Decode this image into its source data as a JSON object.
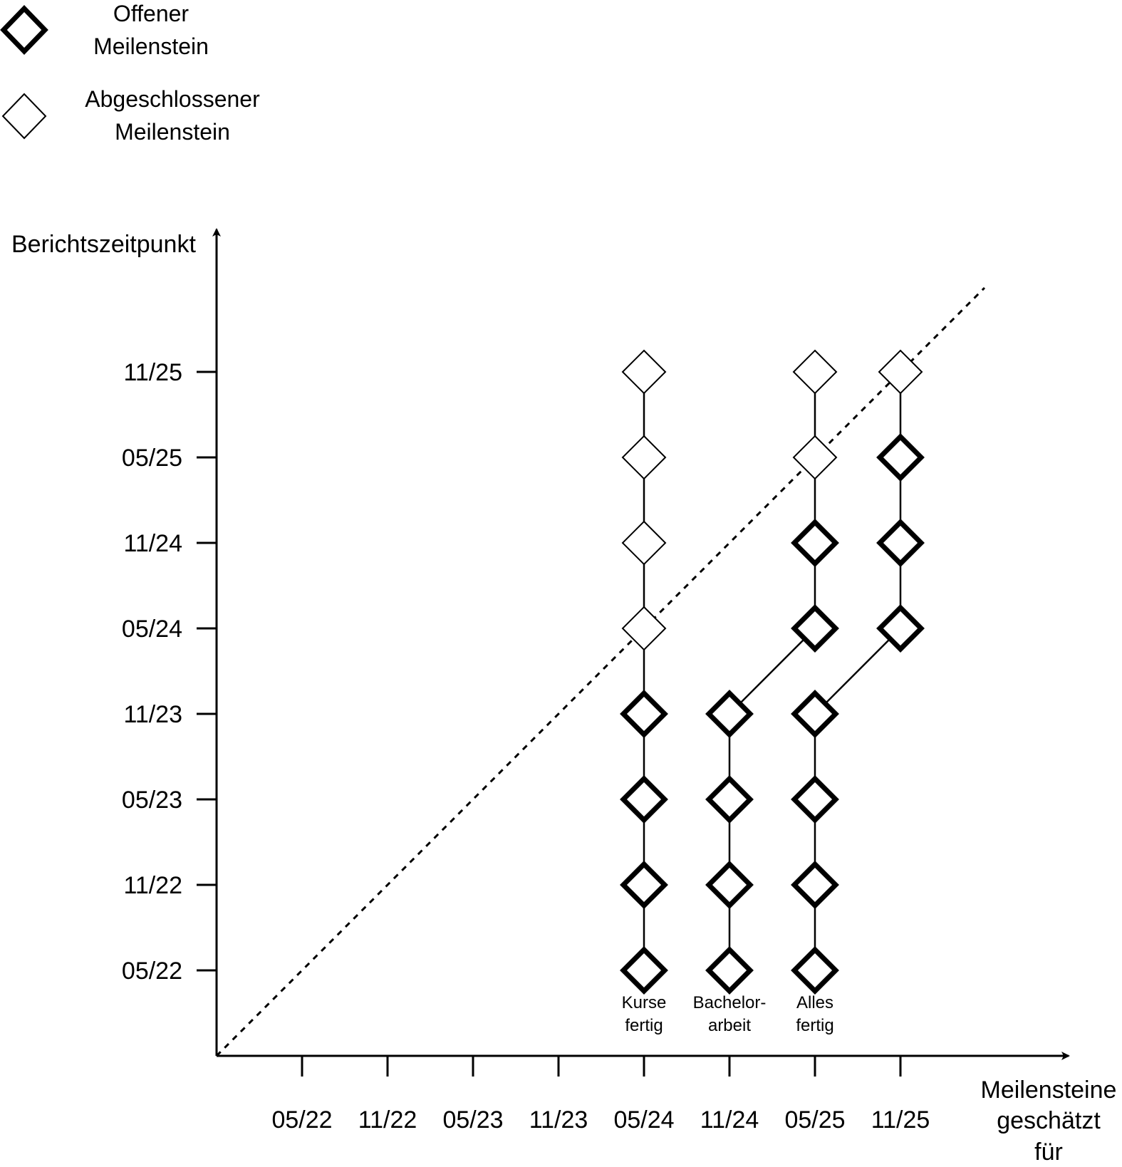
{
  "legend": {
    "open_line1": "Offener",
    "open_line2": "Meilenstein",
    "done_line1": "Abgeschlossener",
    "done_line2": "Meilenstein"
  },
  "axes": {
    "y_label": "Berichtszeitpunkt",
    "x_label_line1": "Meilensteine",
    "x_label_line2": "geschätzt",
    "x_label_line3": "für"
  },
  "chart_data": {
    "type": "milestone-trend-analysis",
    "x_ticks": [
      "05/22",
      "11/22",
      "05/23",
      "11/23",
      "05/24",
      "11/24",
      "05/25",
      "11/25"
    ],
    "y_ticks": [
      "05/22",
      "11/22",
      "05/23",
      "11/23",
      "05/24",
      "11/24",
      "05/25",
      "11/25"
    ],
    "diagonal": "dashed",
    "milestones": [
      {
        "label_line1": "Kurse",
        "label_line2": "fertig",
        "points": [
          {
            "report": "05/22",
            "estimate": "05/24",
            "status": "open"
          },
          {
            "report": "11/22",
            "estimate": "05/24",
            "status": "open"
          },
          {
            "report": "05/23",
            "estimate": "05/24",
            "status": "open"
          },
          {
            "report": "11/23",
            "estimate": "05/24",
            "status": "open"
          },
          {
            "report": "05/24",
            "estimate": "05/24",
            "status": "done"
          },
          {
            "report": "11/24",
            "estimate": "05/24",
            "status": "done"
          },
          {
            "report": "05/25",
            "estimate": "05/24",
            "status": "done"
          },
          {
            "report": "11/25",
            "estimate": "05/24",
            "status": "done"
          }
        ]
      },
      {
        "label_line1": "Bachelor-",
        "label_line2": "arbeit",
        "points": [
          {
            "report": "05/22",
            "estimate": "11/24",
            "status": "open"
          },
          {
            "report": "11/22",
            "estimate": "11/24",
            "status": "open"
          },
          {
            "report": "05/23",
            "estimate": "11/24",
            "status": "open"
          },
          {
            "report": "11/23",
            "estimate": "11/24",
            "status": "open"
          },
          {
            "report": "05/24",
            "estimate": "05/25",
            "status": "open"
          },
          {
            "report": "11/24",
            "estimate": "05/25",
            "status": "open"
          },
          {
            "report": "05/25",
            "estimate": "05/25",
            "status": "done"
          },
          {
            "report": "11/25",
            "estimate": "05/25",
            "status": "done"
          }
        ]
      },
      {
        "label_line1": "Alles",
        "label_line2": "fertig",
        "points": [
          {
            "report": "05/22",
            "estimate": "05/25",
            "status": "open"
          },
          {
            "report": "11/22",
            "estimate": "05/25",
            "status": "open"
          },
          {
            "report": "05/23",
            "estimate": "05/25",
            "status": "open"
          },
          {
            "report": "11/23",
            "estimate": "05/25",
            "status": "open"
          },
          {
            "report": "05/24",
            "estimate": "11/25",
            "status": "open"
          },
          {
            "report": "11/24",
            "estimate": "11/25",
            "status": "open"
          },
          {
            "report": "05/25",
            "estimate": "11/25",
            "status": "open"
          },
          {
            "report": "11/25",
            "estimate": "11/25",
            "status": "done"
          }
        ]
      }
    ]
  }
}
